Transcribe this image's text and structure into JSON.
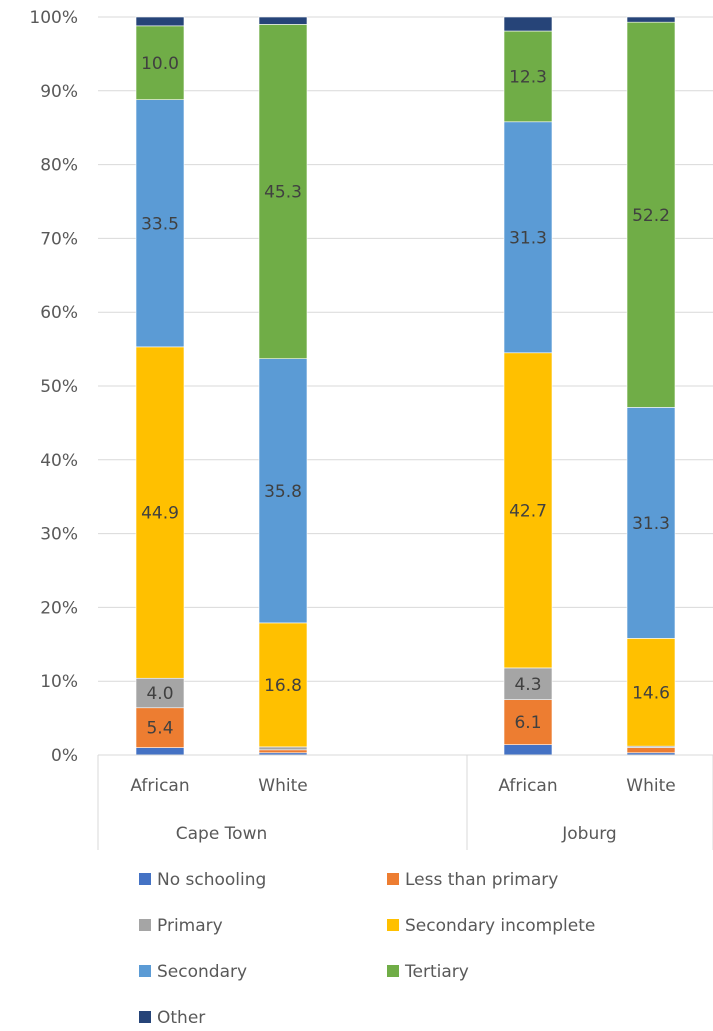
{
  "chart_data": {
    "type": "bar",
    "stacked": true,
    "normalized": true,
    "groups": [
      {
        "name": "Cape Town",
        "categories": [
          "African",
          "White"
        ]
      },
      {
        "name": "Joburg",
        "categories": [
          "African",
          "White"
        ]
      }
    ],
    "categories": [
      "African",
      "White",
      "African",
      "White"
    ],
    "series": [
      {
        "name": "No schooling",
        "color": "#4472c4",
        "values": [
          1.0,
          0.3,
          1.4,
          0.3
        ]
      },
      {
        "name": "Less than primary",
        "color": "#ed7d31",
        "values": [
          5.4,
          0.4,
          6.1,
          0.7
        ]
      },
      {
        "name": "Primary",
        "color": "#a5a5a5",
        "values": [
          4.0,
          0.4,
          4.3,
          0.2
        ]
      },
      {
        "name": "Secondary incomplete",
        "color": "#ffc000",
        "values": [
          44.9,
          16.8,
          42.7,
          14.6
        ]
      },
      {
        "name": "Secondary",
        "color": "#5b9bd5",
        "values": [
          33.5,
          35.8,
          31.3,
          31.3
        ]
      },
      {
        "name": "Tertiary",
        "color": "#70ad47",
        "values": [
          10.0,
          45.3,
          12.3,
          52.2
        ]
      },
      {
        "name": "Other",
        "color": "#264478",
        "values": [
          1.2,
          1.0,
          1.9,
          0.7
        ]
      }
    ],
    "data_labels": [
      {
        "series": 1,
        "category": 0,
        "text": "5.4"
      },
      {
        "series": 2,
        "category": 0,
        "text": "4.0"
      },
      {
        "series": 3,
        "category": 0,
        "text": "44.9"
      },
      {
        "series": 4,
        "category": 0,
        "text": "33.5"
      },
      {
        "series": 5,
        "category": 0,
        "text": "10.0"
      },
      {
        "series": 3,
        "category": 1,
        "text": "16.8"
      },
      {
        "series": 4,
        "category": 1,
        "text": "35.8"
      },
      {
        "series": 5,
        "category": 1,
        "text": "45.3"
      },
      {
        "series": 1,
        "category": 2,
        "text": "6.1"
      },
      {
        "series": 2,
        "category": 2,
        "text": "4.3"
      },
      {
        "series": 3,
        "category": 2,
        "text": "42.7"
      },
      {
        "series": 4,
        "category": 2,
        "text": "31.3"
      },
      {
        "series": 5,
        "category": 2,
        "text": "12.3"
      },
      {
        "series": 3,
        "category": 3,
        "text": "14.6"
      },
      {
        "series": 4,
        "category": 3,
        "text": "31.3"
      },
      {
        "series": 5,
        "category": 3,
        "text": "52.2"
      }
    ],
    "yticks": [
      "0%",
      "10%",
      "20%",
      "30%",
      "40%",
      "50%",
      "60%",
      "70%",
      "80%",
      "90%",
      "100%"
    ],
    "ylim": [
      0,
      100
    ],
    "grid": true,
    "legend_position": "bottom",
    "title": "",
    "xlabel": "",
    "ylabel": ""
  }
}
